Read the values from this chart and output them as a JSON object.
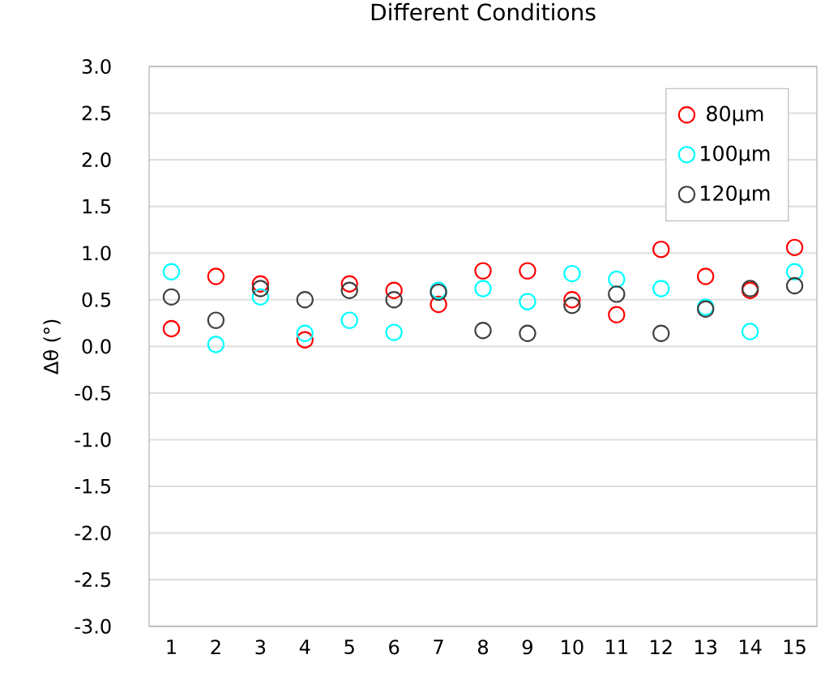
{
  "chart_data": {
    "type": "scatter",
    "title": "Different Conditions",
    "ylabel": "Δθ (°)",
    "categories": [
      "1",
      "2",
      "3",
      "4",
      "5",
      "6",
      "7",
      "8",
      "9",
      "10",
      "11",
      "12",
      "13",
      "14",
      "15"
    ],
    "series": [
      {
        "name": "80μm",
        "color": "#ff0000",
        "values": [
          0.19,
          0.75,
          0.67,
          0.07,
          0.67,
          0.6,
          0.45,
          0.81,
          0.81,
          0.5,
          0.34,
          1.04,
          0.75,
          0.6,
          1.06
        ]
      },
      {
        "name": "100μm",
        "color": "#00ffff",
        "values": [
          0.8,
          0.02,
          0.53,
          0.14,
          0.28,
          0.15,
          0.6,
          0.62,
          0.48,
          0.78,
          0.72,
          0.62,
          0.42,
          0.16,
          0.8
        ]
      },
      {
        "name": "120μm",
        "color": "#404040",
        "values": [
          0.53,
          0.28,
          0.62,
          0.5,
          0.6,
          0.5,
          0.58,
          0.17,
          0.14,
          0.44,
          0.56,
          0.14,
          0.4,
          0.62,
          0.65
        ]
      }
    ],
    "ylim": [
      -3,
      3
    ],
    "yticks": [
      {
        "value": -3,
        "label": "-3.0"
      },
      {
        "value": -2.5,
        "label": "-2.5"
      },
      {
        "value": -2,
        "label": "-2.0"
      },
      {
        "value": -1.5,
        "label": "-1.5"
      },
      {
        "value": -1,
        "label": "-1.0"
      },
      {
        "value": -0.5,
        "label": "-0.5"
      },
      {
        "value": 0,
        "label": "0.0"
      },
      {
        "value": 0.5,
        "label": "0.5"
      },
      {
        "value": 1,
        "label": "1.0"
      },
      {
        "value": 1.5,
        "label": "1.5"
      },
      {
        "value": 2,
        "label": "2.0"
      },
      {
        "value": 2.5,
        "label": "2.5"
      },
      {
        "value": 3,
        "label": "3.0"
      }
    ],
    "grid": "y",
    "legend": "top right",
    "marker": "circle"
  }
}
